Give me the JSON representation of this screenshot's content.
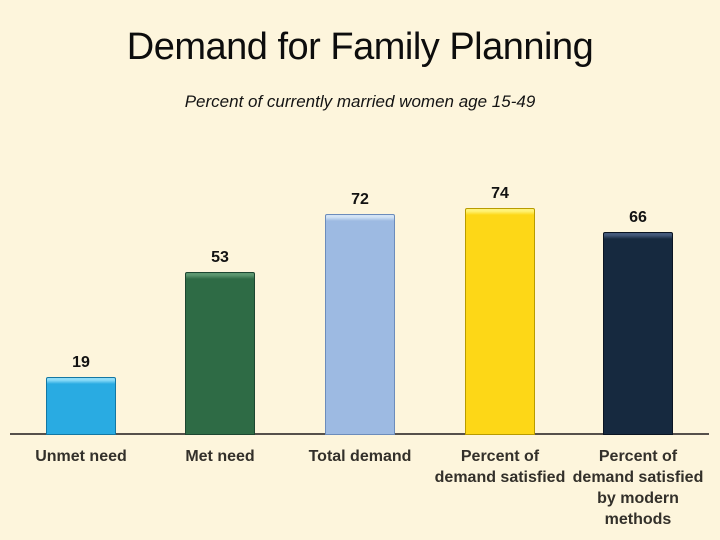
{
  "background": "#FDF5DC",
  "chart_data": {
    "type": "bar",
    "title": "Demand for Family Planning",
    "subtitle": "Percent of currently married women age 15-49",
    "categories": [
      "Unmet need",
      "Met need",
      "Total demand",
      "Percent of\ndemand satisfied",
      "Percent of\ndemand satisfied\nby modern\nmethods"
    ],
    "values": [
      19,
      53,
      72,
      74,
      66
    ],
    "bar_colors": [
      {
        "name": "unmet-need",
        "fill": "#29ABE2",
        "light": "#8EDCF8",
        "dark": "#1377A3"
      },
      {
        "name": "met-need",
        "fill": "#2E6B45",
        "light": "#5C966F",
        "dark": "#1C4630"
      },
      {
        "name": "total-demand",
        "fill": "#9DBAE2",
        "light": "#D3E3F5",
        "dark": "#6C8CBB"
      },
      {
        "name": "percent-of-demand-satisfied",
        "fill": "#FDD717",
        "light": "#FFF378",
        "dark": "#B89B00"
      },
      {
        "name": "percent-satisfied-modern-methods",
        "fill": "#16293F",
        "light": "#44597A",
        "dark": "#0A1422"
      }
    ],
    "xlabel": "",
    "ylabel": "",
    "ylim": [
      0,
      80
    ],
    "grid": false,
    "legend": "none",
    "value_labels": "above-bars",
    "axis_line_color": "#55504B",
    "category_text_color": "#33302A",
    "value_text_color": "#121212"
  }
}
